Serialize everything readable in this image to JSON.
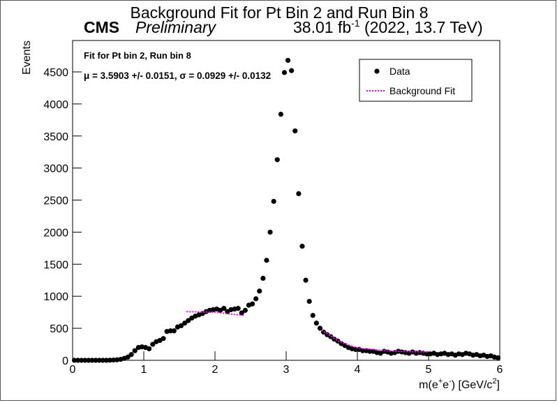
{
  "chart_data": {
    "type": "scatter",
    "title": "Background Fit for Pt Bin 2 and Run Bin 8",
    "experiment": "CMS",
    "status": "Preliminary",
    "luminosity": {
      "text": "38.01 fb",
      "sup": "-1",
      "rest": " (2022, 13.7 TeV)"
    },
    "annotations": [
      "Fit for Pt bin 2, Run bin 8",
      "μ = 3.5903 +/- 0.0151, σ = 0.0929 +/- 0.0132"
    ],
    "x_label": {
      "parts": [
        "m(e",
        "+",
        "e",
        "-",
        ") [GeV/c",
        "2",
        "]"
      ]
    },
    "y_label": "Events",
    "xlim": [
      0,
      6
    ],
    "xticks": [
      0,
      1,
      2,
      3,
      4,
      5,
      6
    ],
    "ylim": [
      0,
      4990
    ],
    "yticks": [
      0,
      500,
      1000,
      1500,
      2000,
      2500,
      3000,
      3500,
      4000,
      4500
    ],
    "legend": "top-right",
    "series": [
      {
        "name": "Data",
        "color": "#000000",
        "marker": "circle",
        "x": [
          0.025,
          0.075,
          0.125,
          0.175,
          0.225,
          0.275,
          0.325,
          0.375,
          0.425,
          0.475,
          0.525,
          0.575,
          0.625,
          0.675,
          0.725,
          0.775,
          0.825,
          0.875,
          0.925,
          0.975,
          1.025,
          1.075,
          1.125,
          1.175,
          1.225,
          1.275,
          1.325,
          1.375,
          1.425,
          1.475,
          1.525,
          1.575,
          1.625,
          1.675,
          1.725,
          1.775,
          1.825,
          1.875,
          1.925,
          1.975,
          2.025,
          2.075,
          2.125,
          2.175,
          2.225,
          2.275,
          2.325,
          2.375,
          2.425,
          2.475,
          2.525,
          2.575,
          2.625,
          2.675,
          2.725,
          2.775,
          2.825,
          2.875,
          2.925,
          2.975,
          3.025,
          3.075,
          3.125,
          3.175,
          3.225,
          3.275,
          3.325,
          3.375,
          3.425,
          3.475,
          3.525,
          3.575,
          3.625,
          3.675,
          3.725,
          3.775,
          3.825,
          3.875,
          3.925,
          3.975,
          4.025,
          4.075,
          4.125,
          4.175,
          4.225,
          4.275,
          4.325,
          4.375,
          4.425,
          4.475,
          4.525,
          4.575,
          4.625,
          4.675,
          4.725,
          4.775,
          4.825,
          4.875,
          4.925,
          4.975,
          5.025,
          5.075,
          5.125,
          5.175,
          5.225,
          5.275,
          5.325,
          5.375,
          5.425,
          5.475,
          5.525,
          5.575,
          5.625,
          5.675,
          5.725,
          5.775,
          5.825,
          5.875,
          5.925,
          5.975
        ],
        "values": [
          0,
          0,
          0,
          0,
          0,
          0,
          0,
          0,
          0,
          0,
          2,
          5,
          8,
          15,
          30,
          50,
          90,
          150,
          200,
          210,
          200,
          180,
          250,
          290,
          310,
          340,
          450,
          460,
          460,
          520,
          540,
          580,
          620,
          660,
          690,
          710,
          730,
          760,
          780,
          790,
          800,
          780,
          810,
          760,
          790,
          800,
          810,
          740,
          780,
          860,
          880,
          960,
          1080,
          1280,
          1560,
          2000,
          2480,
          3130,
          3840,
          4490,
          4680,
          4520,
          3580,
          2600,
          1780,
          1250,
          920,
          700,
          580,
          500,
          440,
          400,
          370,
          330,
          300,
          260,
          230,
          200,
          180,
          170,
          170,
          150,
          150,
          140,
          140,
          120,
          110,
          140,
          130,
          110,
          120,
          140,
          130,
          120,
          110,
          130,
          110,
          120,
          110,
          100,
          100,
          110,
          90,
          100,
          110,
          90,
          100,
          80,
          100,
          90,
          110,
          100,
          80,
          90,
          70,
          80,
          60,
          70,
          50,
          40
        ]
      },
      {
        "name": "Background Fit",
        "color": "#ff00ff",
        "line": "dotted",
        "x": [
          1.6,
          2.0,
          2.4,
          null,
          3.5,
          3.75,
          4.0,
          4.5,
          5.0
        ],
        "values": [
          760,
          750,
          700,
          null,
          470,
          290,
          190,
          140,
          130
        ]
      }
    ]
  }
}
